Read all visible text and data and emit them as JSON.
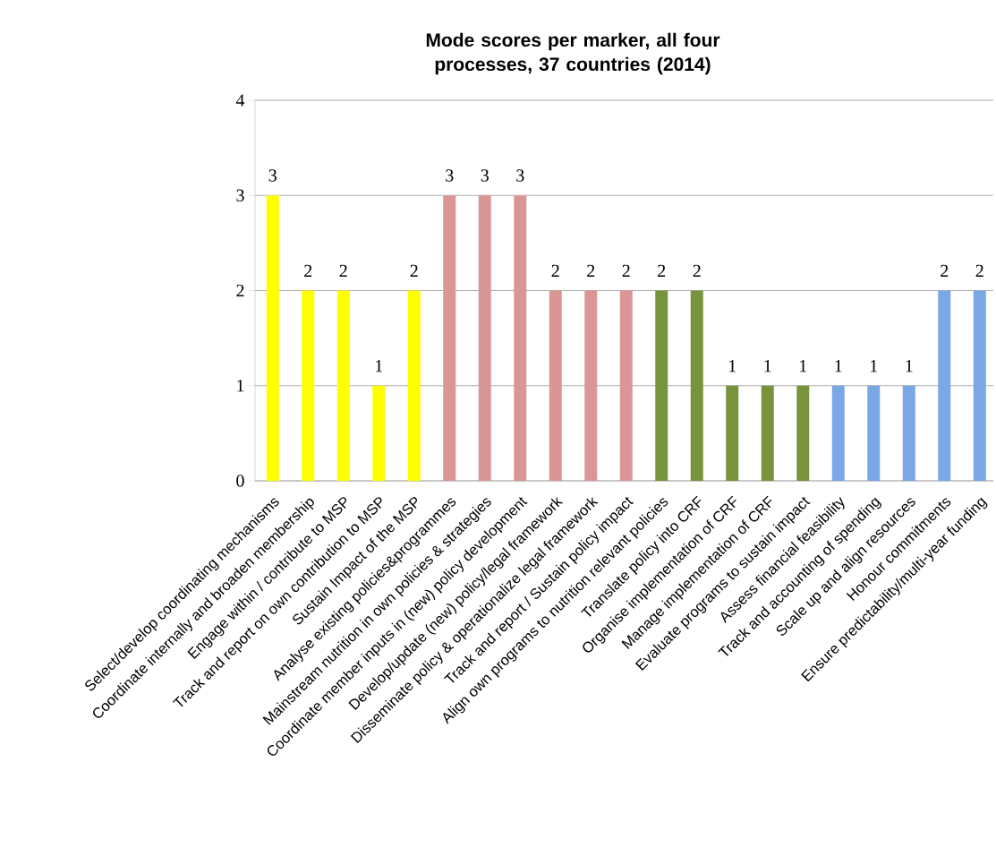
{
  "chart_data": {
    "type": "bar",
    "title": "Mode scores per marker, all four processes, 37 countries (2014)",
    "categories": [
      "Select/develop coordinating mechanisms",
      "Coordinate internally and broaden membership",
      "Engage within / contribute to MSP",
      "Track and report on own contribution to MSP",
      "Sustain Impact of the MSP",
      "Analyse existing policies&programmes",
      "Mainstream nutrition in own policies & strategies",
      "Coordinate member inputs in (new)  policy development",
      "Develop/update (new) policy/legal framework",
      "Disseminate policy & operationalize legal framework",
      "Track and report / Sustain policy impact",
      "Align own programs to nutrition relevant policies",
      "Translate policy into CRF",
      "Organise implementation of CRF",
      "Manage implementation of CRF",
      "Evaluate programs to sustain impact",
      "Assess financial feasibility",
      "Track and accounting of spending",
      "Scale up and align resources",
      "Honour commitments",
      "Ensure predictability/multi-year funding"
    ],
    "values": [
      3,
      2,
      2,
      1,
      2,
      3,
      3,
      3,
      2,
      2,
      2,
      2,
      2,
      1,
      1,
      1,
      1,
      1,
      1,
      2,
      2
    ],
    "colors": [
      "#ffff00",
      "#ffff00",
      "#ffff00",
      "#ffff00",
      "#ffff00",
      "#d99694",
      "#d99694",
      "#d99694",
      "#d99694",
      "#d99694",
      "#d99694",
      "#77933c",
      "#77933c",
      "#77933c",
      "#77933c",
      "#77933c",
      "#7aa7e6",
      "#7aa7e6",
      "#7aa7e6",
      "#7aa7e6",
      "#7aa7e6"
    ],
    "ylim": [
      0,
      4
    ],
    "yticks": [
      0,
      1,
      2,
      3,
      4
    ],
    "grid": "y",
    "data_labels": true
  }
}
